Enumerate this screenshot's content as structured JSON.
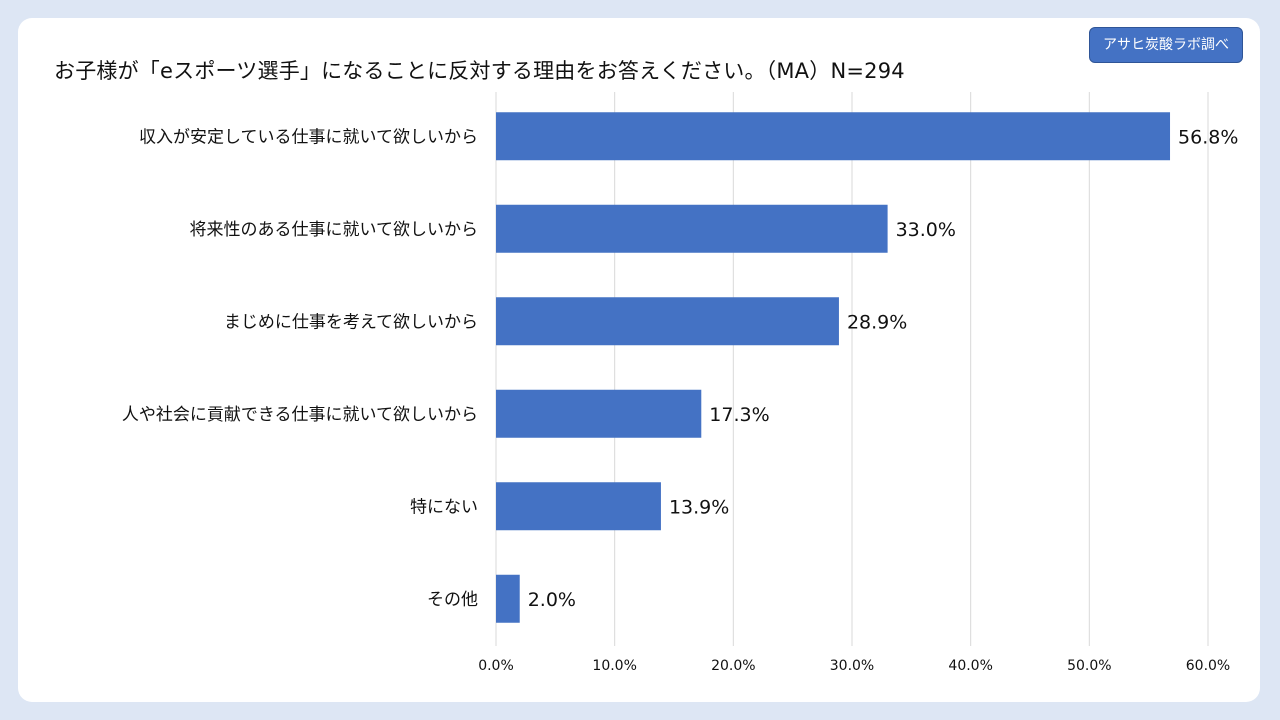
{
  "title": "お子様が「eスポーツ選手」になることに反対する理由をお答えください。（MA）N=294",
  "badge": "アサヒ炭酸ラボ調べ",
  "colors": {
    "bar": "#4472c4",
    "background": "#dde6f4",
    "card": "#ffffff",
    "grid": "#d9d9d9"
  },
  "chart_data": {
    "type": "bar",
    "orientation": "horizontal",
    "categories": [
      "収入が安定している仕事に就いて欲しいから",
      "将来性のある仕事に就いて欲しいから",
      "まじめに仕事を考えて欲しいから",
      "人や社会に貢献できる仕事に就いて欲しいから",
      "特にない",
      "その他"
    ],
    "values": [
      56.8,
      33.0,
      28.9,
      17.3,
      13.9,
      2.0
    ],
    "value_labels": [
      "56.8%",
      "33.0%",
      "28.9%",
      "17.3%",
      "13.9%",
      "2.0%"
    ],
    "xlim": [
      0,
      60
    ],
    "xticks": [
      0,
      10,
      20,
      30,
      40,
      50,
      60
    ],
    "xtick_labels": [
      "0.0%",
      "10.0%",
      "20.0%",
      "30.0%",
      "40.0%",
      "50.0%",
      "60.0%"
    ],
    "grid": "vertical",
    "legend": "none"
  }
}
